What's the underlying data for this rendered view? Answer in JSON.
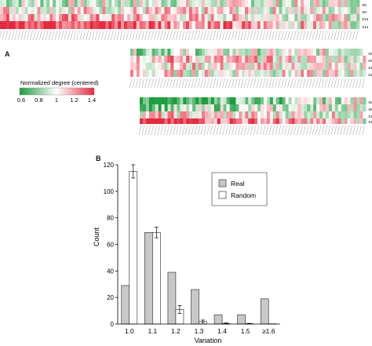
{
  "panels": {
    "a": "A",
    "b": "B"
  },
  "heatmap_legend": {
    "title": "Normalized degree (centered)",
    "ticks": [
      "0.6",
      "0.8",
      "1",
      "1.2",
      "1.4"
    ]
  },
  "heatmap_rows": [
    "S8",
    "S9",
    "S10",
    "S14"
  ],
  "chart_data": {
    "type": "bar",
    "categories": [
      "1.0",
      "1.1",
      "1.2",
      "1.3",
      "1.4",
      "1.5",
      "≥1.6"
    ],
    "series": [
      {
        "name": "Real",
        "values": [
          29,
          69,
          39,
          26,
          7,
          7,
          19
        ]
      },
      {
        "name": "Random",
        "values": [
          115,
          69,
          11,
          2,
          0.5,
          0.3,
          0.2
        ]
      }
    ],
    "random_error": [
      5,
      4,
      3,
      1,
      0.3,
      0.2,
      0.1
    ],
    "xlabel": "Variation",
    "ylabel": "Count",
    "ylim": [
      0,
      120
    ],
    "yticks": [
      "0",
      "20",
      "40",
      "60",
      "80",
      "100",
      "120"
    ],
    "legend_position": "top-right",
    "colors": {
      "real": "#c8c8c8",
      "random": "#ffffff",
      "stroke": "#222222"
    }
  },
  "colors": {
    "low": "#1b9e3e",
    "mid": "#ffffff",
    "high": "#e8283c"
  }
}
